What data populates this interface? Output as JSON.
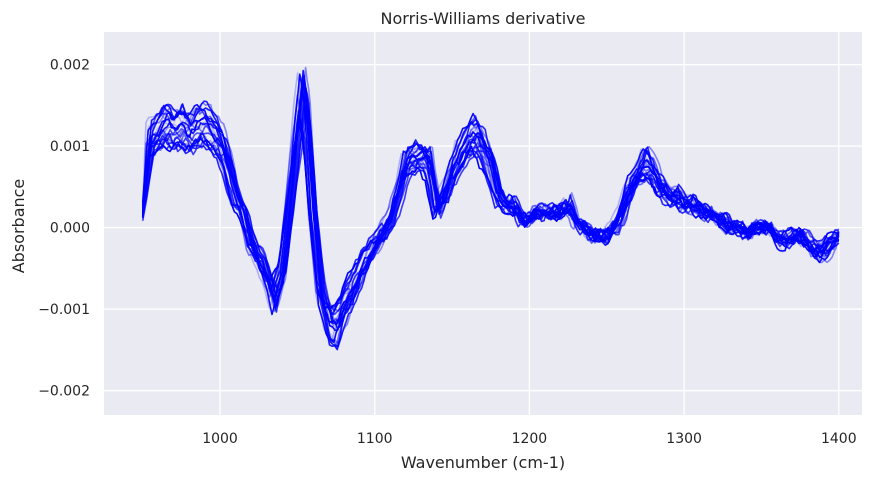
{
  "chart_data": {
    "type": "line",
    "title": "Norris-Williams derivative",
    "xlabel": "Wavenumber (cm-1)",
    "ylabel": "Absorbance",
    "xlim": [
      925,
      1415
    ],
    "ylim": [
      -0.0023,
      0.0024
    ],
    "x_ticks": [
      1000,
      1100,
      1200,
      1300,
      1400
    ],
    "x_tick_labels": [
      "1000",
      "1100",
      "1200",
      "1300",
      "1400"
    ],
    "y_ticks": [
      -0.002,
      -0.001,
      0.0,
      0.001,
      0.002
    ],
    "y_tick_labels": [
      "−0.002",
      "−0.001",
      "0.000",
      "0.001",
      "0.002"
    ],
    "grid": true,
    "background": "#eaeaf2",
    "series_color": "#0000ff",
    "x": [
      950,
      955,
      960,
      965,
      970,
      975,
      980,
      985,
      990,
      995,
      1000,
      1005,
      1010,
      1015,
      1020,
      1025,
      1030,
      1035,
      1040,
      1045,
      1050,
      1053,
      1056,
      1060,
      1065,
      1070,
      1075,
      1080,
      1085,
      1090,
      1095,
      1100,
      1105,
      1110,
      1115,
      1120,
      1125,
      1130,
      1135,
      1140,
      1145,
      1150,
      1155,
      1160,
      1165,
      1170,
      1175,
      1180,
      1185,
      1190,
      1195,
      1200,
      1205,
      1210,
      1215,
      1220,
      1225,
      1230,
      1235,
      1240,
      1245,
      1250,
      1255,
      1260,
      1265,
      1270,
      1275,
      1280,
      1285,
      1290,
      1295,
      1300,
      1305,
      1310,
      1315,
      1320,
      1325,
      1330,
      1335,
      1340,
      1345,
      1350,
      1355,
      1360,
      1365,
      1370,
      1375,
      1380,
      1385,
      1390,
      1395,
      1400
    ],
    "base": [
      0.0002,
      0.0011,
      0.0012,
      0.0013,
      0.00125,
      0.0013,
      0.0012,
      0.0013,
      0.0013,
      0.0012,
      0.0011,
      0.0008,
      0.0004,
      0.0002,
      -0.0002,
      -0.0004,
      -0.0006,
      -0.0009,
      -0.0006,
      0.0003,
      0.0012,
      0.0017,
      0.0013,
      0.0002,
      -0.0008,
      -0.0012,
      -0.0013,
      -0.001,
      -0.0008,
      -0.0006,
      -0.0004,
      -0.0002,
      -0.0001,
      0.0001,
      0.0004,
      0.0008,
      0.0009,
      0.0009,
      0.0008,
      0.0002,
      0.0004,
      0.0007,
      0.0009,
      0.0011,
      0.0012,
      0.001,
      0.0008,
      0.0004,
      0.0003,
      0.0003,
      0.0001,
      0.0001,
      0.0002,
      0.0002,
      0.0002,
      0.0002,
      0.0003,
      0.0001,
      0.0,
      -0.0001,
      -0.0001,
      -0.0001,
      0.0,
      0.0002,
      0.0005,
      0.0007,
      0.0008,
      0.0007,
      0.0005,
      0.0004,
      0.0004,
      0.0003,
      0.0003,
      0.0002,
      0.0002,
      0.0001,
      0.0001,
      0.0,
      0.0,
      -0.0001,
      0.0,
      0.0,
      0.0,
      -0.0001,
      -0.0002,
      -0.0001,
      -0.0001,
      -0.0002,
      -0.0003,
      -0.0003,
      -0.0002,
      -0.0001
    ],
    "series_count": 22,
    "opacities": [
      0.15,
      0.2,
      0.25,
      0.3,
      0.35,
      0.45,
      0.5,
      0.55,
      0.6,
      0.65,
      0.7,
      0.75,
      0.8,
      0.8,
      0.85,
      0.85,
      0.9,
      0.9,
      0.95,
      0.95,
      1.0,
      1.0
    ]
  }
}
